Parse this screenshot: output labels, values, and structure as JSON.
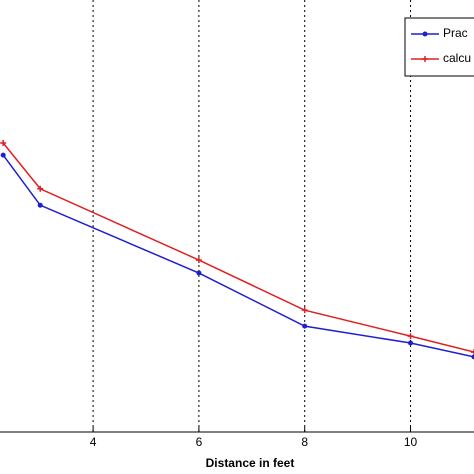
{
  "chart_data": {
    "type": "line",
    "xlabel": "Distance in feet",
    "x": [
      2.3,
      3,
      6,
      8,
      10,
      11.2
    ],
    "series": [
      {
        "name": "Prac",
        "color": "#1f1fd0",
        "marker": "o",
        "values": [
          64.1,
          52.5,
          36.8,
          24.5,
          20.6,
          17.4
        ]
      },
      {
        "name": "calcu",
        "color": "#e02020",
        "marker": "+",
        "values": [
          66.9,
          56.3,
          39.8,
          28.2,
          22.2,
          18.5
        ]
      }
    ],
    "xlim": [
      2.24,
      11.2
    ],
    "xticks": [
      4,
      6,
      8,
      10
    ],
    "ylim": [
      0,
      100
    ],
    "grid": true,
    "legend": "upper right"
  }
}
